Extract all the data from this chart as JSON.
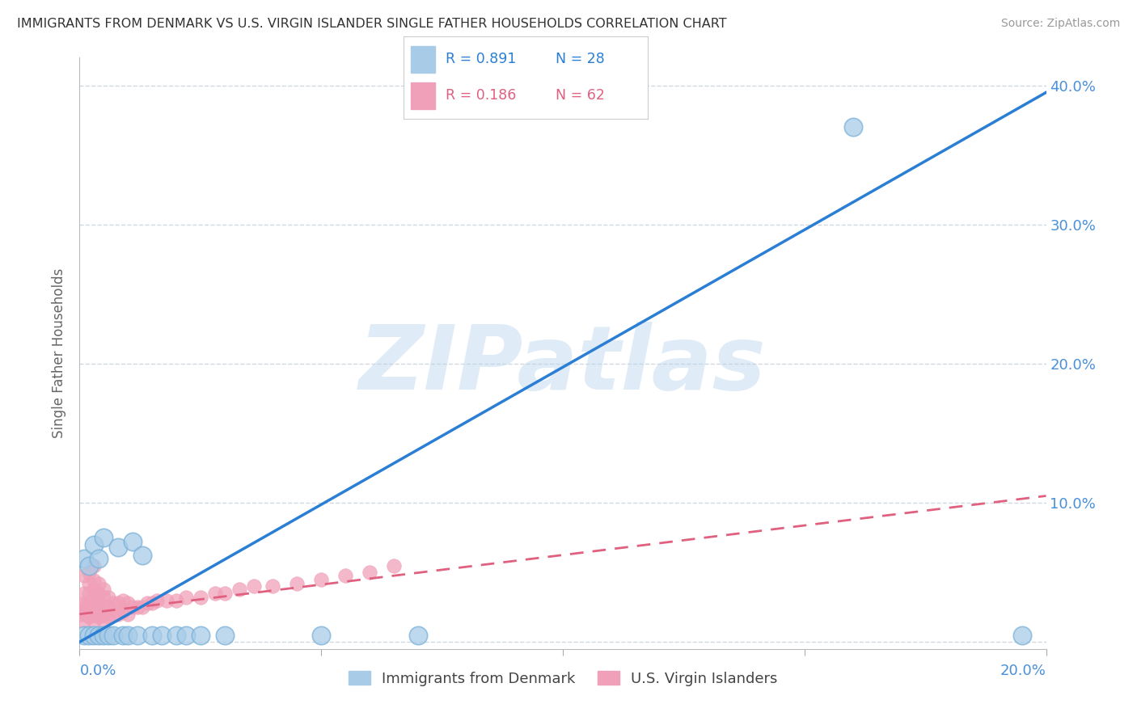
{
  "title": "IMMIGRANTS FROM DENMARK VS U.S. VIRGIN ISLANDER SINGLE FATHER HOUSEHOLDS CORRELATION CHART",
  "source": "Source: ZipAtlas.com",
  "ylabel": "Single Father Households",
  "xlim": [
    0.0,
    0.2
  ],
  "ylim": [
    -0.005,
    0.42
  ],
  "watermark": "ZIPatlas",
  "legend_r1": "R = 0.891",
  "legend_n1": "N = 28",
  "legend_r2": "R = 0.186",
  "legend_n2": "N = 62",
  "blue_scatter_color": "#a8cce8",
  "pink_scatter_color": "#f0a0b8",
  "blue_line_color": "#2a7fd4",
  "pink_line_color": "#e06080",
  "legend_text_color_blue": "#2a7fd4",
  "legend_text_color_pink": "#e06080",
  "ytick_color": "#4a90d9",
  "background_color": "#ffffff",
  "grid_color": "#d0d8e0",
  "title_color": "#333333",
  "source_color": "#999999",
  "ylabel_color": "#666666",
  "blue_line_y0": 0.0,
  "blue_line_y1": 0.395,
  "pink_line_y0": 0.02,
  "pink_line_y1": 0.105,
  "dk_x": [
    0.001,
    0.001,
    0.002,
    0.002,
    0.003,
    0.003,
    0.004,
    0.004,
    0.005,
    0.005,
    0.006,
    0.007,
    0.008,
    0.009,
    0.01,
    0.011,
    0.012,
    0.013,
    0.015,
    0.017,
    0.02,
    0.022,
    0.025,
    0.03,
    0.05,
    0.07,
    0.16,
    0.195
  ],
  "dk_y": [
    0.005,
    0.06,
    0.005,
    0.055,
    0.005,
    0.07,
    0.005,
    0.06,
    0.005,
    0.075,
    0.005,
    0.005,
    0.068,
    0.005,
    0.005,
    0.072,
    0.005,
    0.062,
    0.005,
    0.005,
    0.005,
    0.005,
    0.005,
    0.005,
    0.005,
    0.005,
    0.37,
    0.005
  ],
  "vi_x": [
    0.0005,
    0.0008,
    0.001,
    0.001,
    0.001,
    0.001,
    0.001,
    0.0015,
    0.002,
    0.002,
    0.002,
    0.002,
    0.002,
    0.002,
    0.003,
    0.003,
    0.003,
    0.003,
    0.003,
    0.003,
    0.003,
    0.004,
    0.004,
    0.004,
    0.004,
    0.004,
    0.005,
    0.005,
    0.005,
    0.005,
    0.005,
    0.006,
    0.006,
    0.006,
    0.007,
    0.007,
    0.008,
    0.008,
    0.009,
    0.009,
    0.01,
    0.01,
    0.011,
    0.012,
    0.013,
    0.014,
    0.015,
    0.016,
    0.018,
    0.02,
    0.022,
    0.025,
    0.028,
    0.03,
    0.033,
    0.036,
    0.04,
    0.045,
    0.05,
    0.055,
    0.06,
    0.065
  ],
  "vi_y": [
    0.02,
    0.025,
    0.015,
    0.022,
    0.028,
    0.035,
    0.048,
    0.02,
    0.018,
    0.022,
    0.028,
    0.035,
    0.042,
    0.05,
    0.015,
    0.02,
    0.025,
    0.032,
    0.038,
    0.044,
    0.055,
    0.018,
    0.022,
    0.028,
    0.035,
    0.042,
    0.015,
    0.02,
    0.025,
    0.032,
    0.038,
    0.018,
    0.025,
    0.032,
    0.02,
    0.028,
    0.02,
    0.028,
    0.022,
    0.03,
    0.02,
    0.028,
    0.025,
    0.025,
    0.025,
    0.028,
    0.028,
    0.03,
    0.03,
    0.03,
    0.032,
    0.032,
    0.035,
    0.035,
    0.038,
    0.04,
    0.04,
    0.042,
    0.045,
    0.048,
    0.05,
    0.055
  ]
}
